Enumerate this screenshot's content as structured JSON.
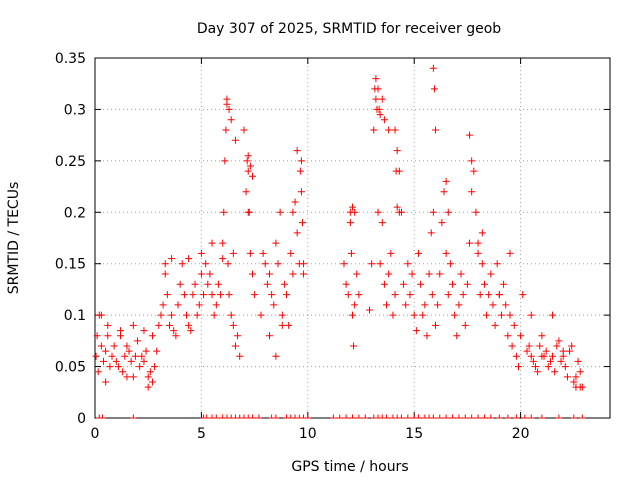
{
  "chart_data": {
    "type": "scatter",
    "title": "Day 307 of 2025, SRMTID for receiver geob",
    "xlabel": "GPS time / hours",
    "ylabel": "SRMTID / TECUs",
    "xlim": [
      0,
      24.2
    ],
    "ylim": [
      0,
      0.35
    ],
    "xticks": [
      0,
      5,
      10,
      15,
      20
    ],
    "xtick_labels": [
      "0",
      "5",
      "10",
      "15",
      "20"
    ],
    "yticks": [
      0,
      0.05,
      0.1,
      0.15,
      0.2,
      0.25,
      0.3,
      0.35
    ],
    "ytick_labels": [
      "0",
      "0.05",
      "0.1",
      "0.15",
      "0.2",
      "0.25",
      "0.3",
      "0.35"
    ],
    "grid": true,
    "marker": "+",
    "color": "#ff0000",
    "series": [
      {
        "name": "SRMTID",
        "x": [
          0.05,
          0.1,
          0.15,
          0.2,
          0.3,
          0.4,
          0.5,
          0.6,
          0.7,
          0.8,
          0.9,
          1.0,
          1.1,
          1.2,
          1.3,
          1.4,
          1.5,
          1.6,
          1.7,
          1.8,
          1.9,
          2.0,
          2.1,
          2.2,
          2.3,
          2.4,
          2.5,
          2.6,
          2.7,
          2.8,
          2.9,
          3.0,
          3.1,
          3.2,
          3.3,
          3.4,
          3.5,
          3.6,
          3.7,
          3.8,
          3.9,
          4.0,
          4.1,
          4.2,
          4.3,
          4.4,
          4.5,
          4.6,
          4.7,
          4.8,
          4.9,
          5.0,
          5.1,
          5.2,
          5.3,
          5.4,
          5.5,
          5.6,
          5.7,
          5.8,
          5.9,
          6.0,
          6.05,
          6.1,
          6.15,
          6.2,
          6.25,
          6.3,
          6.4,
          6.5,
          6.6,
          6.7,
          6.8,
          7.0,
          7.1,
          7.15,
          7.2,
          7.25,
          7.3,
          7.4,
          7.5,
          7.8,
          7.9,
          8.0,
          8.1,
          8.2,
          8.3,
          8.4,
          8.5,
          8.6,
          8.7,
          8.8,
          8.9,
          9.0,
          9.1,
          9.2,
          9.3,
          9.4,
          9.5,
          9.6,
          9.65,
          9.7,
          9.75,
          9.8,
          11.7,
          11.8,
          11.9,
          12.0,
          12.05,
          12.1,
          12.15,
          12.2,
          12.3,
          12.4,
          12.9,
          13.0,
          13.1,
          13.15,
          13.2,
          13.25,
          13.3,
          13.4,
          13.5,
          13.6,
          13.7,
          13.8,
          13.9,
          14.0,
          14.1,
          14.2,
          14.3,
          14.4,
          14.5,
          14.6,
          14.7,
          14.8,
          14.9,
          15.0,
          15.1,
          15.2,
          15.3,
          15.4,
          15.5,
          15.6,
          15.7,
          15.8,
          15.85,
          15.9,
          16.0,
          16.1,
          16.2,
          16.3,
          16.4,
          16.5,
          16.6,
          16.7,
          16.8,
          16.9,
          17.0,
          17.1,
          17.2,
          17.3,
          17.4,
          17.5,
          17.6,
          17.7,
          17.8,
          17.9,
          18.0,
          18.1,
          18.2,
          18.3,
          18.4,
          18.5,
          18.6,
          18.7,
          18.8,
          18.9,
          19.0,
          19.1,
          19.2,
          19.3,
          19.4,
          19.5,
          19.6,
          19.7,
          19.8,
          19.9,
          20.0,
          20.3,
          20.4,
          20.5,
          20.6,
          20.7,
          20.8,
          20.9,
          21.0,
          21.1,
          21.2,
          21.3,
          21.4,
          21.5,
          21.6,
          21.7,
          21.8,
          21.9,
          22.0,
          22.1,
          22.2,
          22.3,
          22.4,
          22.5,
          22.6,
          22.7,
          22.8,
          22.9,
          0.3,
          0.6,
          1.2,
          1.8,
          2.3,
          2.7,
          0.5,
          1.5,
          2.5,
          3.3,
          3.6,
          4.4,
          5.0,
          5.5,
          6.0,
          6.5,
          6.2,
          6.3,
          6.4,
          6.6,
          7.2,
          7.3,
          7.4,
          7.2,
          8.2,
          8.5,
          8.8,
          9.3,
          9.5,
          9.7,
          9.8,
          12.0,
          12.1,
          12.2,
          13.2,
          13.3,
          13.35,
          13.4,
          13.5,
          13.6,
          13.8,
          14.1,
          14.15,
          14.2,
          14.3,
          15.9,
          15.95,
          16.0,
          16.5,
          16.6,
          17.6,
          17.7,
          18.0,
          18.2,
          19.0,
          19.5,
          20.1,
          20.5,
          21.0,
          21.5,
          22.0,
          22.6,
          22.8
        ],
        "y": [
          0.06,
          0.08,
          0.045,
          0.1,
          0.07,
          0.055,
          0.065,
          0.08,
          0.05,
          0.06,
          0.07,
          0.055,
          0.05,
          0.08,
          0.045,
          0.06,
          0.07,
          0.065,
          0.055,
          0.04,
          0.06,
          0.075,
          0.05,
          0.06,
          0.055,
          0.065,
          0.04,
          0.045,
          0.035,
          0.05,
          0.065,
          0.09,
          0.1,
          0.11,
          0.15,
          0.12,
          0.09,
          0.1,
          0.085,
          0.08,
          0.11,
          0.13,
          0.15,
          0.12,
          0.1,
          0.09,
          0.085,
          0.12,
          0.13,
          0.1,
          0.11,
          0.14,
          0.12,
          0.15,
          0.13,
          0.14,
          0.12,
          0.1,
          0.11,
          0.13,
          0.12,
          0.17,
          0.2,
          0.25,
          0.28,
          0.31,
          0.15,
          0.12,
          0.1,
          0.09,
          0.07,
          0.08,
          0.06,
          0.28,
          0.22,
          0.25,
          0.24,
          0.2,
          0.16,
          0.14,
          0.12,
          0.1,
          0.16,
          0.15,
          0.13,
          0.14,
          0.12,
          0.11,
          0.17,
          0.15,
          0.2,
          0.1,
          0.13,
          0.12,
          0.09,
          0.16,
          0.14,
          0.21,
          0.18,
          0.15,
          0.24,
          0.22,
          0.19,
          0.14,
          0.15,
          0.13,
          0.12,
          0.2,
          0.16,
          0.1,
          0.07,
          0.11,
          0.14,
          0.12,
          0.105,
          0.15,
          0.28,
          0.32,
          0.33,
          0.3,
          0.2,
          0.15,
          0.19,
          0.13,
          0.11,
          0.14,
          0.16,
          0.1,
          0.12,
          0.26,
          0.24,
          0.2,
          0.13,
          0.11,
          0.15,
          0.12,
          0.14,
          0.1,
          0.085,
          0.16,
          0.13,
          0.1,
          0.11,
          0.08,
          0.14,
          0.18,
          0.12,
          0.2,
          0.09,
          0.11,
          0.14,
          0.19,
          0.22,
          0.16,
          0.12,
          0.15,
          0.13,
          0.1,
          0.08,
          0.11,
          0.14,
          0.12,
          0.09,
          0.13,
          0.17,
          0.22,
          0.24,
          0.2,
          0.16,
          0.12,
          0.15,
          0.13,
          0.1,
          0.12,
          0.14,
          0.11,
          0.09,
          0.15,
          0.12,
          0.1,
          0.13,
          0.11,
          0.08,
          0.1,
          0.07,
          0.09,
          0.06,
          0.05,
          0.08,
          0.065,
          0.07,
          0.06,
          0.055,
          0.05,
          0.045,
          0.07,
          0.08,
          0.06,
          0.065,
          0.05,
          0.055,
          0.06,
          0.045,
          0.07,
          0.075,
          0.055,
          0.06,
          0.05,
          0.04,
          0.065,
          0.07,
          0.035,
          0.03,
          0.055,
          0.045,
          0.03,
          0.1,
          0.09,
          0.085,
          0.09,
          0.085,
          0.08,
          0.035,
          0.04,
          0.03,
          0.14,
          0.155,
          0.155,
          0.16,
          0.17,
          0.155,
          0.16,
          0.305,
          0.3,
          0.29,
          0.27,
          0.255,
          0.245,
          0.235,
          0.2,
          0.08,
          0.06,
          0.09,
          0.2,
          0.26,
          0.25,
          0.15,
          0.19,
          0.205,
          0.2,
          0.31,
          0.32,
          0.3,
          0.295,
          0.31,
          0.29,
          0.28,
          0.28,
          0.24,
          0.205,
          0.2,
          0.34,
          0.32,
          0.28,
          0.23,
          0.2,
          0.275,
          0.25,
          0.17,
          0.18,
          0.12,
          0.16,
          0.12,
          0.1,
          0.06,
          0.1,
          0.065,
          0.04,
          0.03
        ]
      }
    ],
    "zero_markers_x": [
      0.2,
      0.35,
      1.8,
      5.1,
      5.25,
      5.5,
      5.7,
      6.0,
      6.2,
      6.4,
      6.6,
      6.8,
      7.0,
      7.2,
      7.4,
      7.7,
      8.3,
      8.5,
      9.0,
      9.2,
      9.4,
      9.6,
      9.8,
      10.0,
      11.2,
      11.5,
      11.8,
      12.1,
      12.4,
      12.7,
      13.1,
      13.3,
      13.5,
      13.7,
      14.0,
      14.2,
      14.4,
      14.7,
      15.0,
      15.2,
      15.5,
      15.7,
      15.9,
      16.2,
      16.5,
      16.8,
      17.1,
      17.4,
      17.7,
      18.0,
      18.3,
      18.6,
      19.0,
      19.4,
      19.8,
      20.2,
      20.5,
      21.0,
      21.8,
      22.5,
      22.9
    ]
  }
}
